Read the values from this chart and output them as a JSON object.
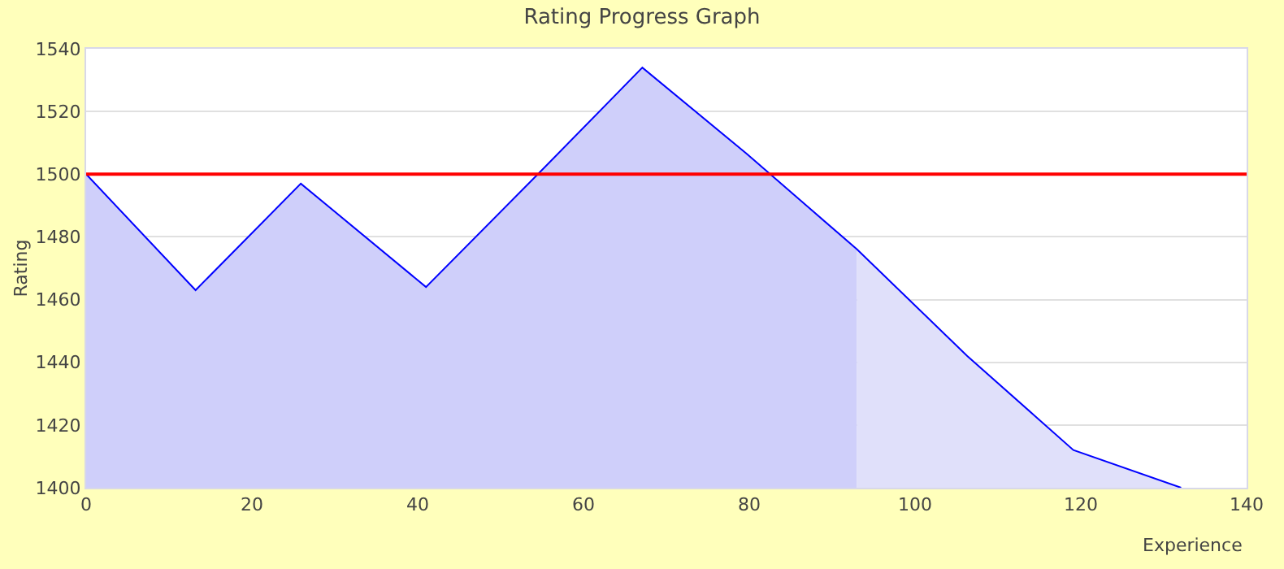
{
  "chart_data": {
    "type": "line",
    "title": "Rating Progress Graph",
    "xlabel": "Experience",
    "ylabel": "Rating",
    "series": [
      {
        "type": "area",
        "color": "#cfcffa",
        "x": [
          0,
          13.2,
          25.9,
          41,
          54.5,
          67.1,
          79.7,
          93
        ],
        "values": [
          1500,
          1463,
          1497,
          1464,
          1500,
          1534,
          1506.5,
          1476
        ]
      },
      {
        "type": "area",
        "color": "#e0e0fa",
        "x": [
          93,
          106.3,
          119.1,
          132.1
        ],
        "values": [
          1476,
          1442,
          1412,
          1400
        ]
      },
      {
        "color": "#0000ff",
        "x": [
          0,
          13.2,
          25.9,
          41,
          54.5,
          67.1,
          79.7,
          93,
          106.3,
          119.1,
          132.1
        ],
        "values": [
          1500,
          1463,
          1497,
          1464,
          1500,
          1534,
          1506.5,
          1476,
          1442,
          1412,
          1400
        ]
      }
    ],
    "xlim": [
      0,
      140
    ],
    "xticks": [
      0,
      20,
      40,
      60,
      80,
      100,
      120,
      140
    ],
    "ylim": [
      1400,
      1540
    ],
    "yticks": [
      1400,
      1420,
      1440,
      1460,
      1480,
      1500,
      1520,
      1540
    ],
    "ref_lines": [
      {
        "axis": "y",
        "value": 1500,
        "color": "#ff0000"
      }
    ],
    "grid": "y",
    "marker": "none",
    "line_style": "solid"
  }
}
